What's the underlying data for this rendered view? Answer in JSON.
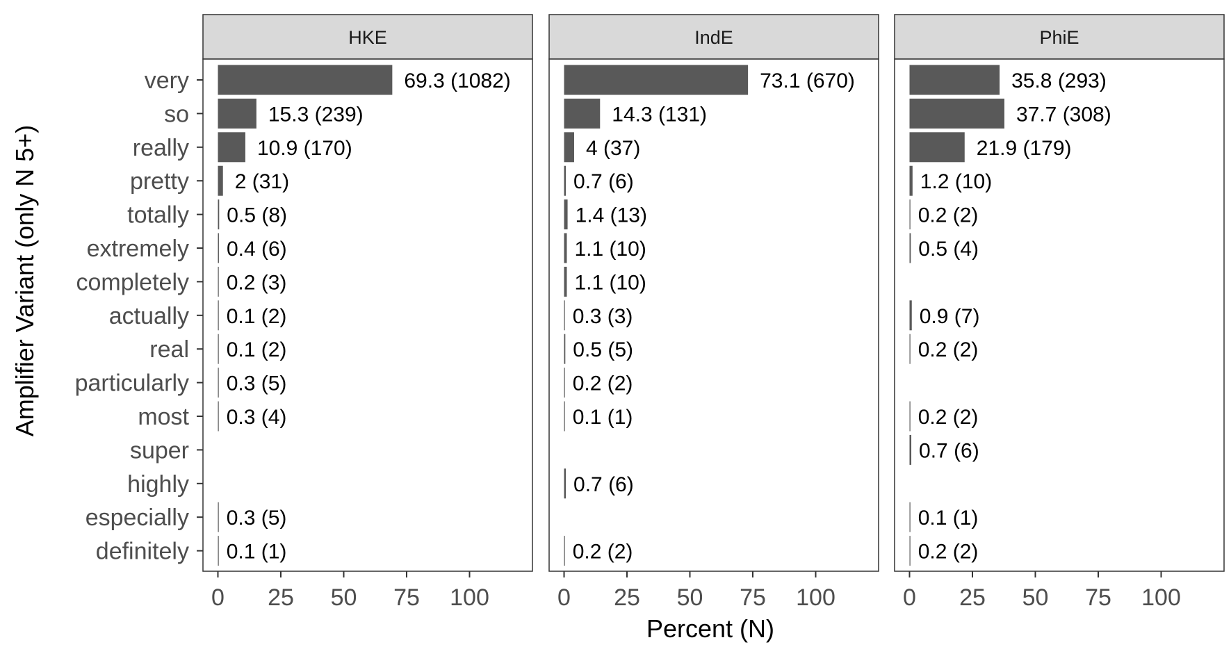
{
  "chart_data": {
    "type": "bar",
    "orientation": "horizontal",
    "xlabel": "Percent (N)",
    "ylabel": "Amplifier Variant (only N 5+)",
    "xlim": [
      0,
      120
    ],
    "xticks": [
      "0",
      "25",
      "50",
      "75",
      "100"
    ],
    "grid": false,
    "bar_color": "#595959",
    "strip_color": "#d9d9d9",
    "categories": [
      "very",
      "so",
      "really",
      "pretty",
      "totally",
      "extremely",
      "completely",
      "actually",
      "real",
      "particularly",
      "most",
      "super",
      "highly",
      "especially",
      "definitely"
    ],
    "panels": [
      {
        "name": "HKE",
        "values": [
          69.3,
          15.3,
          10.9,
          2,
          0.5,
          0.4,
          0.2,
          0.1,
          0.1,
          0.3,
          0.3,
          null,
          null,
          0.3,
          0.1
        ],
        "labels": [
          "69.3 (1082)",
          "15.3 (239)",
          "10.9 (170)",
          "2 (31)",
          "0.5 (8)",
          "0.4 (6)",
          "0.2 (3)",
          "0.1 (2)",
          "0.1 (2)",
          "0.3 (5)",
          "0.3 (4)",
          "",
          "",
          "0.3 (5)",
          "0.1 (1)"
        ]
      },
      {
        "name": "IndE",
        "values": [
          73.1,
          14.3,
          4,
          0.7,
          1.4,
          1.1,
          1.1,
          0.3,
          0.5,
          0.2,
          0.1,
          null,
          0.7,
          null,
          0.2
        ],
        "labels": [
          "73.1 (670)",
          "14.3 (131)",
          "4 (37)",
          "0.7 (6)",
          "1.4 (13)",
          "1.1 (10)",
          "1.1 (10)",
          "0.3 (3)",
          "0.5 (5)",
          "0.2 (2)",
          "0.1 (1)",
          "",
          "0.7 (6)",
          "",
          "0.2 (2)"
        ]
      },
      {
        "name": "PhiE",
        "values": [
          35.8,
          37.7,
          21.9,
          1.2,
          0.2,
          0.5,
          null,
          0.9,
          0.2,
          null,
          0.2,
          0.7,
          null,
          0.1,
          0.2
        ],
        "labels": [
          "35.8 (293)",
          "37.7 (308)",
          "21.9 (179)",
          "1.2 (10)",
          "0.2 (2)",
          "0.5 (4)",
          "",
          "0.9 (7)",
          "0.2 (2)",
          "",
          "0.2 (2)",
          "0.7 (6)",
          "",
          "0.1 (1)",
          "0.2 (2)"
        ]
      }
    ]
  }
}
